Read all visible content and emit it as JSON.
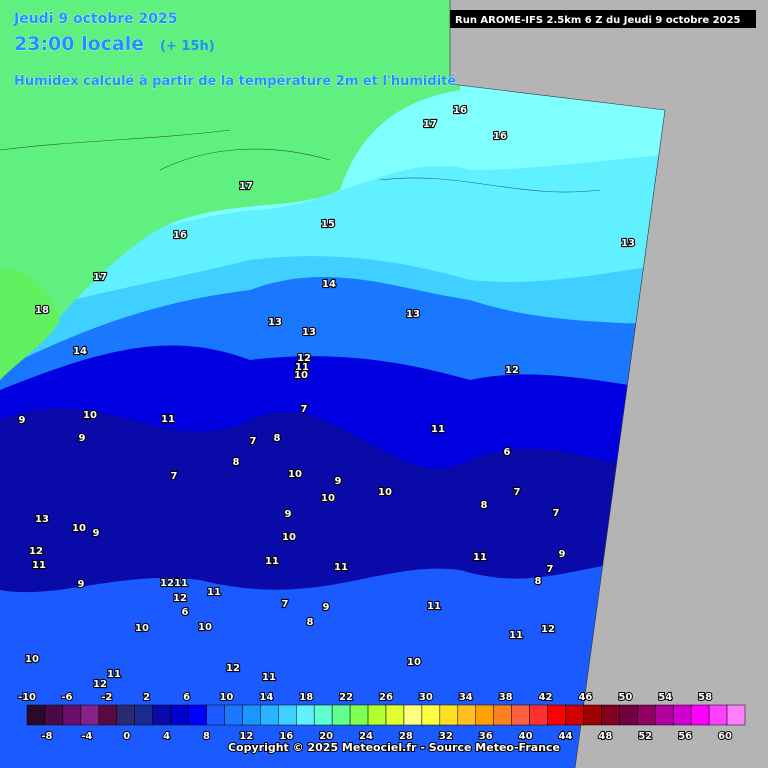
{
  "header": {
    "date": "Jeudi 9 octobre 2025",
    "time": "23:00 locale",
    "offset": "(+ 15h)",
    "subtitle": "Humidex calculé à partir de la température 2m et l'humidité"
  },
  "run": "Run AROME-IFS 2.5km 6 Z du Jeudi 9 octobre 2025",
  "legend": {
    "top_labels": [
      "-10",
      "-6",
      "-2",
      "2",
      "6",
      "10",
      "14",
      "18",
      "22",
      "26",
      "30",
      "34",
      "38",
      "42",
      "46",
      "50",
      "54",
      "58"
    ],
    "bottom_labels": [
      "-8",
      "-4",
      "0",
      "4",
      "8",
      "12",
      "16",
      "20",
      "24",
      "28",
      "32",
      "36",
      "40",
      "44",
      "48",
      "52",
      "56",
      "60"
    ],
    "colors": [
      "#2a0a2a",
      "#4a0a4a",
      "#6a106a",
      "#86208a",
      "#5a0a40",
      "#2a2a70",
      "#1a2a8e",
      "#0a0aa8",
      "#0000cc",
      "#0000ff",
      "#1a5aff",
      "#1a78ff",
      "#1a96ff",
      "#2ab4ff",
      "#40d0ff",
      "#60f0ff",
      "#60ffd0",
      "#60ff90",
      "#80ff50",
      "#b0ff30",
      "#e0ff30",
      "#ffff80",
      "#ffff40",
      "#ffe020",
      "#ffc020",
      "#ffa000",
      "#ff8020",
      "#ff6040",
      "#ff3030",
      "#ff0000",
      "#d00000",
      "#a00000",
      "#800020",
      "#700040",
      "#900060",
      "#b000a0",
      "#d000d0",
      "#ff00ff",
      "#ff40ff",
      "#ff80ff"
    ]
  },
  "copyright": "Copyright © 2025 Meteociel.fr - Source Meteo-France",
  "contour_labels": [
    "16",
    "17",
    "16",
    "17",
    "15",
    "16",
    "13",
    "17",
    "14",
    "18",
    "13",
    "13",
    "13",
    "14",
    "12",
    "11",
    "10",
    "12",
    "10",
    "9",
    "11",
    "7",
    "9",
    "7",
    "8",
    "11",
    "8",
    "6",
    "7",
    "10",
    "9",
    "10",
    "10",
    "7",
    "8",
    "7",
    "13",
    "10",
    "9",
    "9",
    "10",
    "12",
    "11",
    "11",
    "9",
    "7",
    "11",
    "11",
    "8",
    "9",
    "12",
    "11",
    "11",
    "12",
    "7",
    "9",
    "11",
    "10",
    "6",
    "10",
    "8",
    "11",
    "12",
    "10",
    "11",
    "12",
    "11",
    "10",
    "12"
  ]
}
